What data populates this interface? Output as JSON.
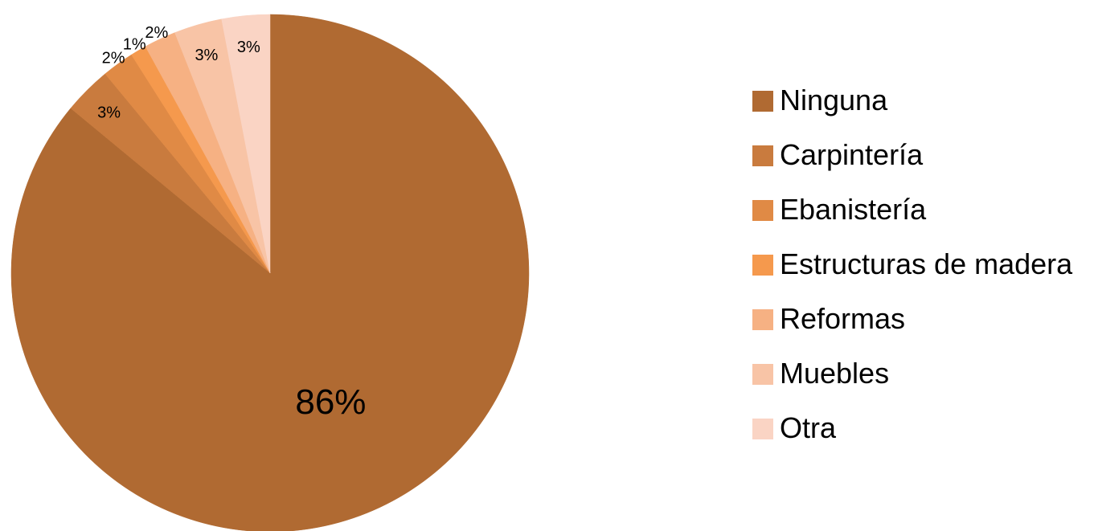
{
  "chart_data": {
    "type": "pie",
    "title": "",
    "legend_position": "right",
    "slices": [
      {
        "name": "Ninguna",
        "value": 86,
        "label": "86%",
        "color": "#b06a32"
      },
      {
        "name": "Carpintería",
        "value": 3,
        "label": "3%",
        "color": "#c97b3e"
      },
      {
        "name": "Ebanistería",
        "value": 2,
        "label": "2%",
        "color": "#e08a45"
      },
      {
        "name": "Estructuras de madera",
        "value": 1,
        "label": "1%",
        "color": "#f5994d"
      },
      {
        "name": "Reformas",
        "value": 2,
        "label": "2%",
        "color": "#f6b183"
      },
      {
        "name": "Muebles",
        "value": 3,
        "label": "3%",
        "color": "#f8c4a6"
      },
      {
        "name": "Otra",
        "value": 3,
        "label": "3%",
        "color": "#fad4c4"
      }
    ]
  }
}
